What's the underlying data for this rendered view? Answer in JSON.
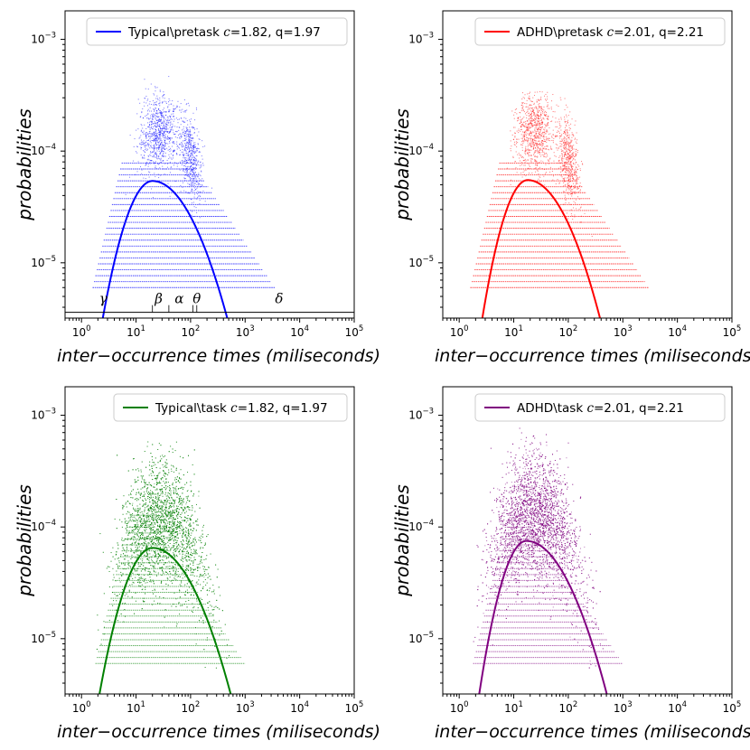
{
  "chart_data": [
    {
      "type": "scatter",
      "legend_label": "Typical\\pretask",
      "c": "1.82",
      "q": "1.97",
      "color": "#0000ff",
      "xlabel": "inter−occurrence times (miliseconds)",
      "ylabel": "probabilities",
      "x_scale": "log",
      "y_scale": "log",
      "xlim": [
        0.5,
        100000
      ],
      "ylim": [
        3.2e-06,
        0.0018
      ],
      "xticks": [
        1,
        10,
        100,
        1000,
        10000,
        100000
      ],
      "yticks": [
        1e-05,
        0.0001,
        0.001
      ],
      "fit_curve": {
        "peak_x": 20,
        "peak_y": 5.4e-05,
        "x_range": [
          2.3,
          520
        ]
      },
      "scatter_cloud": {
        "x_min": 1.6,
        "x_max": 1500,
        "y_max": 0.0005,
        "horizontal_levels_x_max": 3500
      },
      "legend_position": "top-right",
      "band_labels": [
        {
          "label": "γ",
          "x": 2.5
        },
        {
          "label": "β",
          "x": 26
        },
        {
          "label": "α",
          "x": 62
        },
        {
          "label": "θ",
          "x": 130
        },
        {
          "label": "δ",
          "x": 4200
        }
      ],
      "band_boundaries": [
        20,
        40,
        110,
        130
      ],
      "band_baseline_y": 3.6e-06
    },
    {
      "type": "scatter",
      "legend_label": "ADHD\\pretask",
      "c": "2.01",
      "q": "2.21",
      "color": "#ff0000",
      "xlabel": "inter−occurrence times (miliseconds)",
      "ylabel": "probabilities",
      "x_scale": "log",
      "y_scale": "log",
      "xlim": [
        0.5,
        100000
      ],
      "ylim": [
        3.2e-06,
        0.0018
      ],
      "xticks": [
        1,
        10,
        100,
        1000,
        10000,
        100000
      ],
      "yticks": [
        1e-05,
        0.0001,
        0.001
      ],
      "fit_curve": {
        "peak_x": 18,
        "peak_y": 5.5e-05,
        "x_range": [
          2.5,
          420
        ]
      },
      "scatter_cloud": {
        "x_min": 1.6,
        "x_max": 1500,
        "y_max": 0.00035,
        "horizontal_levels_x_max": 3000
      },
      "legend_position": "top-right"
    },
    {
      "type": "scatter",
      "legend_label": "Typical\\task",
      "c": "1.82",
      "q": "1.97",
      "color": "#008000",
      "xlabel": "inter−occurrence times (miliseconds)",
      "ylabel": "probabilities",
      "x_scale": "log",
      "y_scale": "log",
      "xlim": [
        0.5,
        100000
      ],
      "ylim": [
        3.2e-06,
        0.0018
      ],
      "xticks": [
        1,
        10,
        100,
        1000,
        10000,
        100000
      ],
      "yticks": [
        1e-05,
        0.0001,
        0.001
      ],
      "fit_curve": {
        "peak_x": 20,
        "peak_y": 6.5e-05,
        "x_range": [
          2,
          600
        ]
      },
      "scatter_cloud": {
        "x_min": 1.8,
        "x_max": 1000,
        "y_max": 0.0006,
        "horizontal_levels_x_max": 1000
      },
      "legend_position": "top-right"
    },
    {
      "type": "scatter",
      "legend_label": "ADHD\\task",
      "c": "2.01",
      "q": "2.21",
      "color": "#800080",
      "xlabel": "inter−occurrence times (miliseconds)",
      "ylabel": "probabilities",
      "x_scale": "log",
      "y_scale": "log",
      "xlim": [
        0.5,
        100000
      ],
      "ylim": [
        3.2e-06,
        0.0018
      ],
      "xticks": [
        1,
        10,
        100,
        1000,
        10000,
        100000
      ],
      "yticks": [
        1e-05,
        0.0001,
        0.001
      ],
      "fit_curve": {
        "peak_x": 17,
        "peak_y": 7.5e-05,
        "x_range": [
          2.2,
          560
        ]
      },
      "scatter_cloud": {
        "x_min": 1.8,
        "x_max": 1000,
        "y_max": 0.0009,
        "horizontal_levels_x_max": 1000
      },
      "legend_position": "top-right"
    }
  ]
}
